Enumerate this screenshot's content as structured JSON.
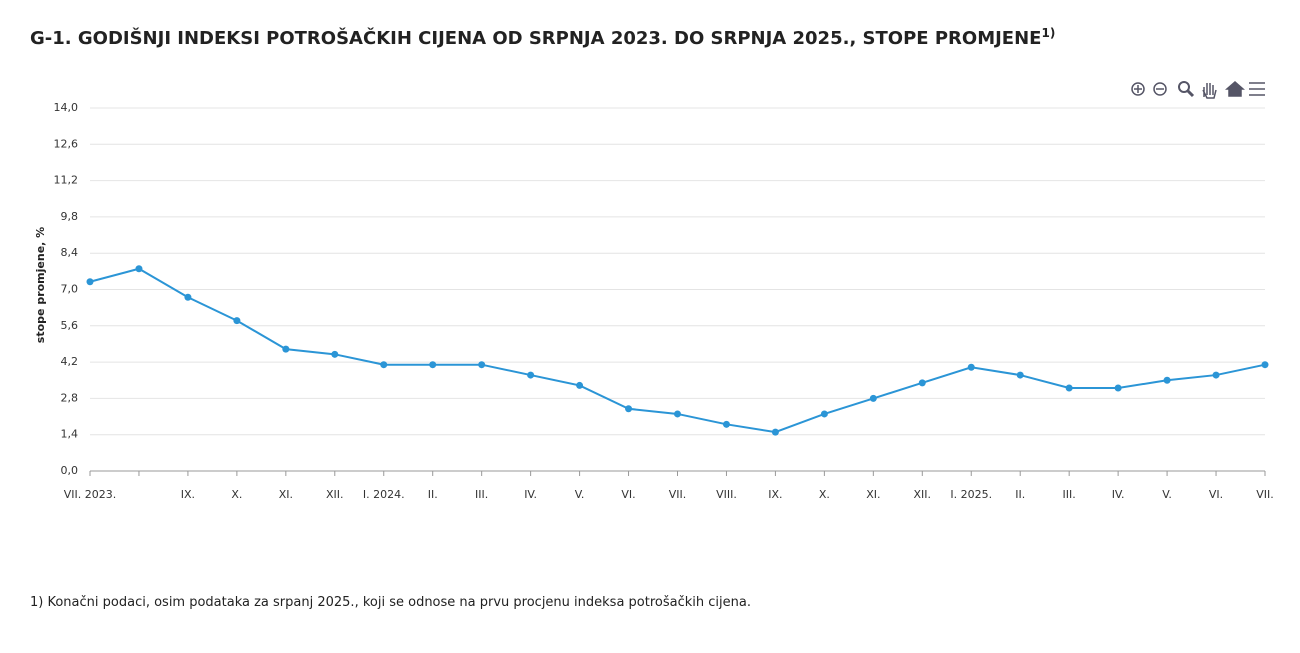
{
  "chart_data": {
    "type": "line",
    "title": "G-1. GODIŠNJI INDEKSI POTROŠAČKIH CIJENA OD SRPNJA 2023. DO SRPNJA 2025., STOPE PROMJENE",
    "title_note": "1)",
    "y_label": "stope promjene, %",
    "categories": [
      "VII. 2023.",
      null,
      "IX.",
      "X.",
      "XI.",
      "XII.",
      "I. 2024.",
      "II.",
      "III.",
      "IV.",
      "V.",
      "VI.",
      "VII.",
      "VIII.",
      "IX.",
      "X.",
      "XI.",
      "XII.",
      "I. 2025.",
      "II.",
      "III.",
      "IV.",
      "V.",
      "VI.",
      "VII."
    ],
    "values": [
      7.3,
      7.8,
      6.7,
      5.8,
      4.7,
      4.5,
      4.1,
      4.1,
      4.1,
      3.7,
      3.3,
      2.4,
      2.2,
      1.8,
      1.5,
      2.2,
      2.8,
      3.4,
      4.0,
      3.7,
      3.2,
      3.2,
      3.5,
      3.7,
      4.1
    ],
    "color": "#2b95d6",
    "ylim": [
      0,
      14
    ],
    "yticks": [
      {
        "value": 0,
        "label": "0,0"
      },
      {
        "value": 1.4,
        "label": "1,4"
      },
      {
        "value": 2.8,
        "label": "2,8"
      },
      {
        "value": 4.2,
        "label": "4,2"
      },
      {
        "value": 5.6,
        "label": "5,6"
      },
      {
        "value": 7,
        "label": "7,0"
      },
      {
        "value": 8.4,
        "label": "8,4"
      },
      {
        "value": 9.8,
        "label": "9,8"
      },
      {
        "value": 11.2,
        "label": "11,2"
      },
      {
        "value": 12.6,
        "label": "12,6"
      },
      {
        "value": 14,
        "label": "14,0"
      }
    ],
    "grid": true,
    "footnote": "1) Konačni podaci, osim podataka za srpanj 2025., koji se odnose na prvu procjenu indeksa potrošačkih cijena."
  }
}
